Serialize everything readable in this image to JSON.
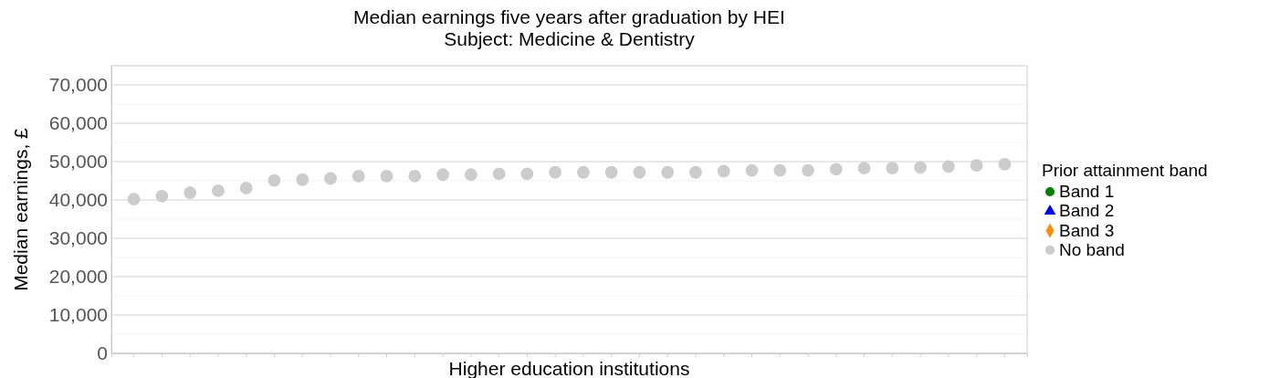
{
  "chart_data": {
    "type": "scatter",
    "title": "Median earnings five years after graduation by HEI",
    "subtitle": "Subject: Medicine & Dentistry",
    "xlabel": "Higher education institutions",
    "ylabel": "Median earnings, £",
    "legend_title": "Prior attainment band",
    "categories": [
      null,
      null,
      null,
      null,
      null,
      null,
      null,
      null,
      null,
      null,
      null,
      null,
      null,
      null,
      null,
      null,
      null,
      null,
      null,
      null,
      null,
      null,
      null,
      null,
      null,
      null,
      null,
      null,
      null,
      null,
      null,
      null
    ],
    "series": [
      {
        "name": "Band 1",
        "color": "#008000",
        "marker": "circle",
        "values": [
          null,
          null,
          null,
          null,
          null,
          null,
          null,
          null,
          null,
          null,
          null,
          null,
          null,
          null,
          null,
          null,
          null,
          null,
          null,
          null,
          null,
          null,
          null,
          null,
          null,
          null,
          null,
          null,
          null,
          null,
          null,
          null
        ]
      },
      {
        "name": "Band 2",
        "color": "#0000ff",
        "marker": "triangle",
        "values": [
          null,
          null,
          null,
          null,
          null,
          null,
          null,
          null,
          null,
          null,
          null,
          null,
          null,
          null,
          null,
          null,
          null,
          null,
          null,
          null,
          null,
          null,
          null,
          null,
          null,
          null,
          null,
          null,
          null,
          null,
          null,
          null
        ]
      },
      {
        "name": "Band 3",
        "color": "#ff8c00",
        "marker": "diamond",
        "values": [
          null,
          null,
          null,
          null,
          null,
          null,
          null,
          null,
          null,
          null,
          null,
          null,
          null,
          null,
          null,
          null,
          null,
          null,
          null,
          null,
          null,
          null,
          null,
          null,
          null,
          null,
          null,
          null,
          null,
          null,
          null,
          null
        ]
      },
      {
        "name": "No band",
        "color": "#cccccc",
        "marker": "circle",
        "values": [
          40200,
          41000,
          41900,
          42400,
          43100,
          45100,
          45300,
          45600,
          46200,
          46200,
          46200,
          46600,
          46600,
          46800,
          46800,
          47200,
          47200,
          47200,
          47200,
          47200,
          47200,
          47500,
          47700,
          47700,
          47700,
          48000,
          48300,
          48300,
          48500,
          48700,
          49000,
          49300
        ]
      }
    ],
    "ylim": [
      0,
      75000
    ],
    "yticks": [
      0,
      {
        "value": 5000,
        "label": null
      },
      {
        "value": 10000,
        "label": "10,000"
      },
      {
        "value": 15000,
        "label": null
      },
      {
        "value": 20000,
        "label": "20,000"
      },
      {
        "value": 25000,
        "label": null
      },
      {
        "value": 30000,
        "label": "30,000"
      },
      {
        "value": 35000,
        "label": null
      },
      {
        "value": 40000,
        "label": "40,000"
      },
      {
        "value": 45000,
        "label": null
      },
      {
        "value": 50000,
        "label": "50,000"
      },
      {
        "value": 55000,
        "label": null
      },
      {
        "value": 60000,
        "label": "60,000"
      },
      {
        "value": 65000,
        "label": null
      },
      {
        "value": 70000,
        "label": "70,000"
      }
    ],
    "grid": "y",
    "legend": "right"
  }
}
